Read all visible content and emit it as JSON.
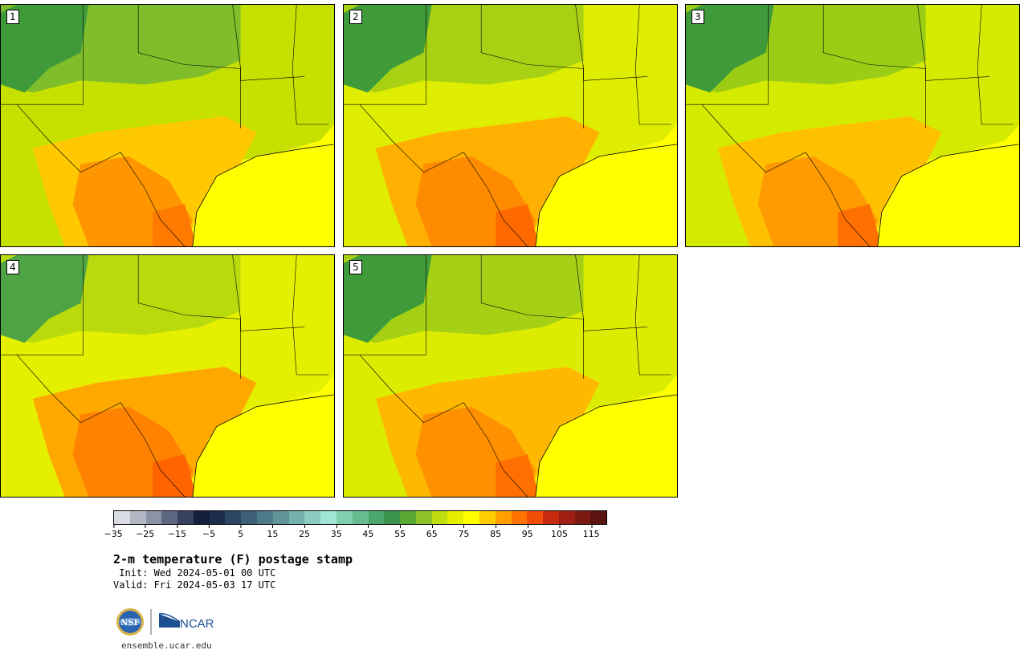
{
  "panels": [
    {
      "label": "1"
    },
    {
      "label": "2"
    },
    {
      "label": "3"
    },
    {
      "label": "4"
    },
    {
      "label": "5"
    }
  ],
  "colorbar": {
    "colors": [
      "#d9dde3",
      "#b3b8c4",
      "#8c93a5",
      "#5f6883",
      "#374260",
      "#13203d",
      "#1c2d4c",
      "#2c4663",
      "#3d5f78",
      "#4e7988",
      "#609598",
      "#75b1ae",
      "#8bcdc3",
      "#9fe6d4",
      "#80d0b0",
      "#66bc8e",
      "#4da86e",
      "#3a934c",
      "#5aa633",
      "#8cc227",
      "#c0dd10",
      "#e6ef00",
      "#ffff00",
      "#ffcd00",
      "#ff9f00",
      "#ff7300",
      "#f14e09",
      "#c82a10",
      "#a01e12",
      "#7a1a12",
      "#5c1410"
    ],
    "tick_labels": [
      "−35",
      "−25",
      "−15",
      "−5",
      "5",
      "15",
      "25",
      "35",
      "45",
      "55",
      "65",
      "75",
      "85",
      "95",
      "105",
      "115"
    ]
  },
  "title": "2-m temperature (F) postage stamp",
  "init_text": " Init: Wed 2024-05-01 00 UTC",
  "valid_text": "Valid: Fri 2024-05-03 17 UTC",
  "logo_texts": {
    "nsf": "NSF",
    "ncar": "NCAR"
  },
  "url": "ensemble.ucar.edu"
}
